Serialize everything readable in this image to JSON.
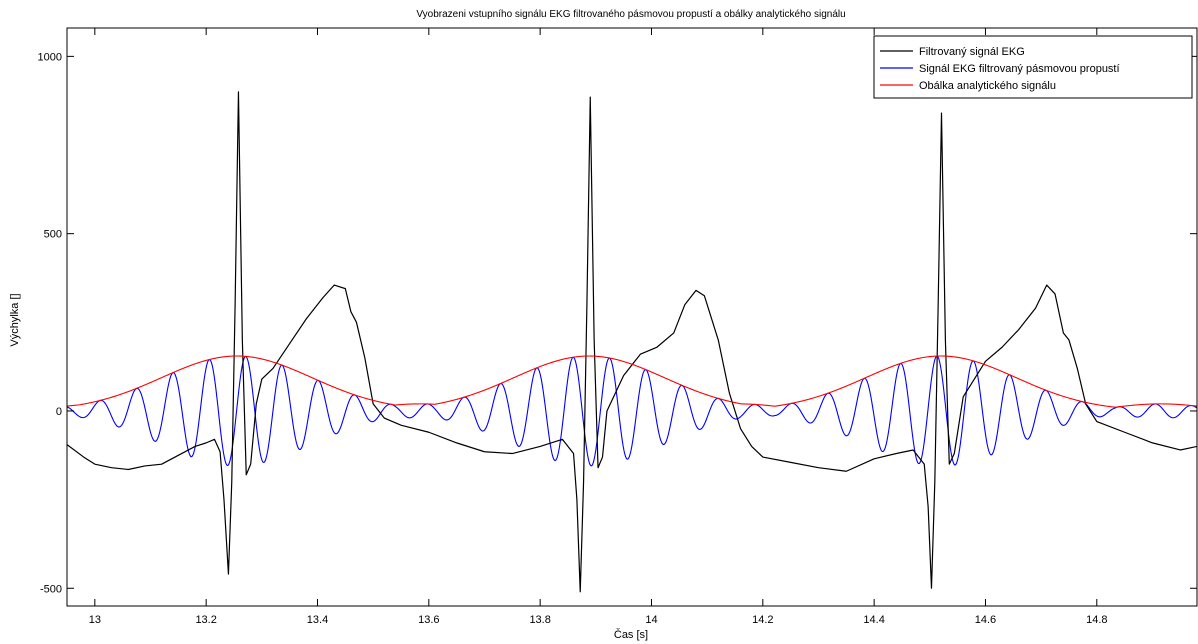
{
  "chart_data": {
    "type": "line",
    "title": "Vyobrazeni vstupního signálu EKG filtrovaného pásmovou propustí a obálky analytického signálu",
    "xlabel": "Čas [s]",
    "ylabel": "Výchylka []",
    "xlim": [
      12.95,
      14.98
    ],
    "ylim": [
      -550,
      1080
    ],
    "x_ticks": [
      13,
      13.2,
      13.4,
      13.6,
      13.8,
      14,
      14.2,
      14.4,
      14.6,
      14.8
    ],
    "x_tick_labels": [
      "13",
      "13.2",
      "13.4",
      "13.6",
      "13.8",
      "14",
      "14.2",
      "14.4",
      "14.6",
      "14.8"
    ],
    "y_ticks": [
      -500,
      0,
      500,
      1000
    ],
    "y_tick_labels": [
      "-500",
      "0",
      "500",
      "1000"
    ],
    "grid": false,
    "legend_position": "top-right",
    "beats": [
      13.255,
      13.888,
      14.52
    ],
    "series": [
      {
        "name": "Filtrovaný signál EKG",
        "color": "#000000",
        "points": [
          [
            12.95,
            -95
          ],
          [
            12.98,
            -130
          ],
          [
            13.0,
            -150
          ],
          [
            13.03,
            -160
          ],
          [
            13.06,
            -165
          ],
          [
            13.09,
            -155
          ],
          [
            13.12,
            -150
          ],
          [
            13.15,
            -125
          ],
          [
            13.18,
            -100
          ],
          [
            13.2,
            -90
          ],
          [
            13.215,
            -80
          ],
          [
            13.225,
            -115
          ],
          [
            13.232,
            -250
          ],
          [
            13.24,
            -460
          ],
          [
            13.246,
            -200
          ],
          [
            13.252,
            300
          ],
          [
            13.258,
            900
          ],
          [
            13.265,
            200
          ],
          [
            13.272,
            -180
          ],
          [
            13.28,
            -150
          ],
          [
            13.29,
            20
          ],
          [
            13.3,
            90
          ],
          [
            13.32,
            120
          ],
          [
            13.35,
            190
          ],
          [
            13.38,
            260
          ],
          [
            13.41,
            320
          ],
          [
            13.43,
            355
          ],
          [
            13.45,
            345
          ],
          [
            13.46,
            280
          ],
          [
            13.47,
            250
          ],
          [
            13.485,
            150
          ],
          [
            13.5,
            20
          ],
          [
            13.52,
            -20
          ],
          [
            13.55,
            -40
          ],
          [
            13.6,
            -60
          ],
          [
            13.65,
            -90
          ],
          [
            13.7,
            -115
          ],
          [
            13.75,
            -120
          ],
          [
            13.8,
            -100
          ],
          [
            13.84,
            -80
          ],
          [
            13.86,
            -120
          ],
          [
            13.866,
            -250
          ],
          [
            13.872,
            -510
          ],
          [
            13.878,
            -200
          ],
          [
            13.884,
            300
          ],
          [
            13.89,
            885
          ],
          [
            13.897,
            200
          ],
          [
            13.904,
            -160
          ],
          [
            13.912,
            -130
          ],
          [
            13.92,
            0
          ],
          [
            13.95,
            100
          ],
          [
            13.98,
            160
          ],
          [
            14.01,
            180
          ],
          [
            14.04,
            220
          ],
          [
            14.06,
            300
          ],
          [
            14.08,
            340
          ],
          [
            14.095,
            325
          ],
          [
            14.11,
            250
          ],
          [
            14.12,
            200
          ],
          [
            14.14,
            50
          ],
          [
            14.16,
            -50
          ],
          [
            14.18,
            -100
          ],
          [
            14.2,
            -130
          ],
          [
            14.25,
            -145
          ],
          [
            14.3,
            -160
          ],
          [
            14.35,
            -170
          ],
          [
            14.4,
            -135
          ],
          [
            14.44,
            -120
          ],
          [
            14.47,
            -110
          ],
          [
            14.49,
            -150
          ],
          [
            14.497,
            -270
          ],
          [
            14.503,
            -500
          ],
          [
            14.509,
            -200
          ],
          [
            14.515,
            300
          ],
          [
            14.521,
            840
          ],
          [
            14.528,
            200
          ],
          [
            14.535,
            -150
          ],
          [
            14.544,
            -120
          ],
          [
            14.56,
            40
          ],
          [
            14.6,
            140
          ],
          [
            14.63,
            180
          ],
          [
            14.66,
            230
          ],
          [
            14.69,
            290
          ],
          [
            14.71,
            355
          ],
          [
            14.725,
            330
          ],
          [
            14.74,
            220
          ],
          [
            14.75,
            200
          ],
          [
            14.765,
            120
          ],
          [
            14.78,
            20
          ],
          [
            14.8,
            -30
          ],
          [
            14.85,
            -60
          ],
          [
            14.9,
            -90
          ],
          [
            14.95,
            -110
          ],
          [
            14.98,
            -100
          ]
        ]
      },
      {
        "name": "Signál EKG filtrovaný pásmovou propustí",
        "color": "#0000ff",
        "frequency_hz": 15.3,
        "phase_offset_s": 0.003
      },
      {
        "name": "Obálka analytického signálu",
        "color": "#ff0000",
        "envelope_peak": 155,
        "envelope_width_s": 0.135,
        "baseline": 8,
        "baseline_ripple": 12,
        "baseline_period_s": 0.19
      }
    ]
  }
}
